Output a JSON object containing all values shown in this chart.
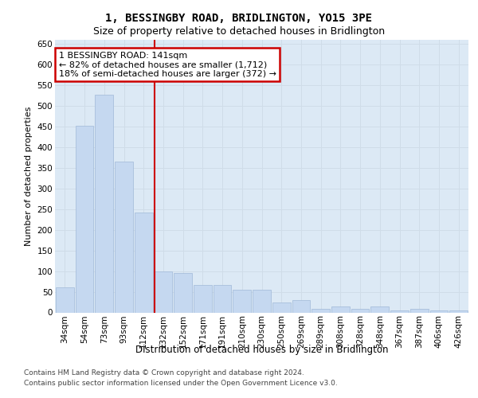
{
  "title": "1, BESSINGBY ROAD, BRIDLINGTON, YO15 3PE",
  "subtitle": "Size of property relative to detached houses in Bridlington",
  "xlabel": "Distribution of detached houses by size in Bridlington",
  "ylabel": "Number of detached properties",
  "categories": [
    "34sqm",
    "54sqm",
    "73sqm",
    "93sqm",
    "112sqm",
    "132sqm",
    "152sqm",
    "171sqm",
    "191sqm",
    "210sqm",
    "230sqm",
    "250sqm",
    "269sqm",
    "289sqm",
    "308sqm",
    "328sqm",
    "348sqm",
    "367sqm",
    "387sqm",
    "406sqm",
    "426sqm"
  ],
  "values": [
    60,
    452,
    527,
    365,
    242,
    100,
    95,
    67,
    67,
    55,
    55,
    25,
    30,
    8,
    15,
    8,
    15,
    5,
    8,
    5,
    5
  ],
  "bar_color": "#c5d8f0",
  "bar_edge_color": "#a0b8d8",
  "red_line_index": 5,
  "annotation_line1": "1 BESSINGBY ROAD: 141sqm",
  "annotation_line2": "← 82% of detached houses are smaller (1,712)",
  "annotation_line3": "18% of semi-detached houses are larger (372) →",
  "annotation_box_facecolor": "#ffffff",
  "annotation_box_edgecolor": "#cc0000",
  "grid_color": "#cfdce8",
  "plot_bg_color": "#dce9f5",
  "ylim": [
    0,
    660
  ],
  "yticks": [
    0,
    50,
    100,
    150,
    200,
    250,
    300,
    350,
    400,
    450,
    500,
    550,
    600,
    650
  ],
  "footer_text1": "Contains HM Land Registry data © Crown copyright and database right 2024.",
  "footer_text2": "Contains public sector information licensed under the Open Government Licence v3.0.",
  "title_fontsize": 10,
  "subtitle_fontsize": 9,
  "xlabel_fontsize": 8.5,
  "ylabel_fontsize": 8,
  "tick_fontsize": 7.5,
  "annotation_fontsize": 8,
  "footer_fontsize": 6.5
}
